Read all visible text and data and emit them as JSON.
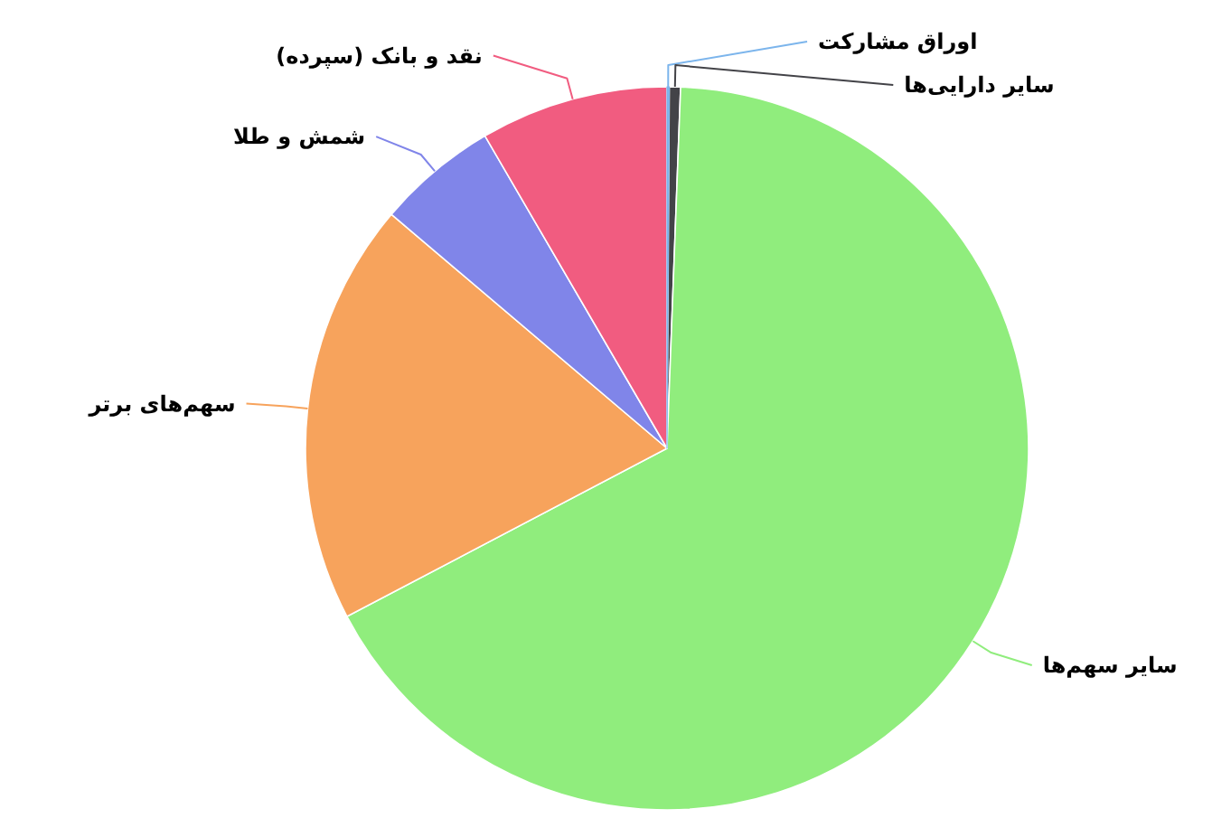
{
  "chart_data": {
    "type": "pie",
    "categories": [
      "اوراق مشارکت",
      "سایر دارایی‌ها",
      "سایر سهم‌ها",
      "سهم‌های برتر",
      "شمش و طلا",
      "نقد و بانک (سپرده)"
    ],
    "values": [
      0.1,
      0.5,
      66.7,
      18.9,
      5.4,
      8.4
    ],
    "colors": [
      "#7cb5ec",
      "#434348",
      "#90ed7d",
      "#f7a35c",
      "#8085e9",
      "#f15c80"
    ]
  }
}
